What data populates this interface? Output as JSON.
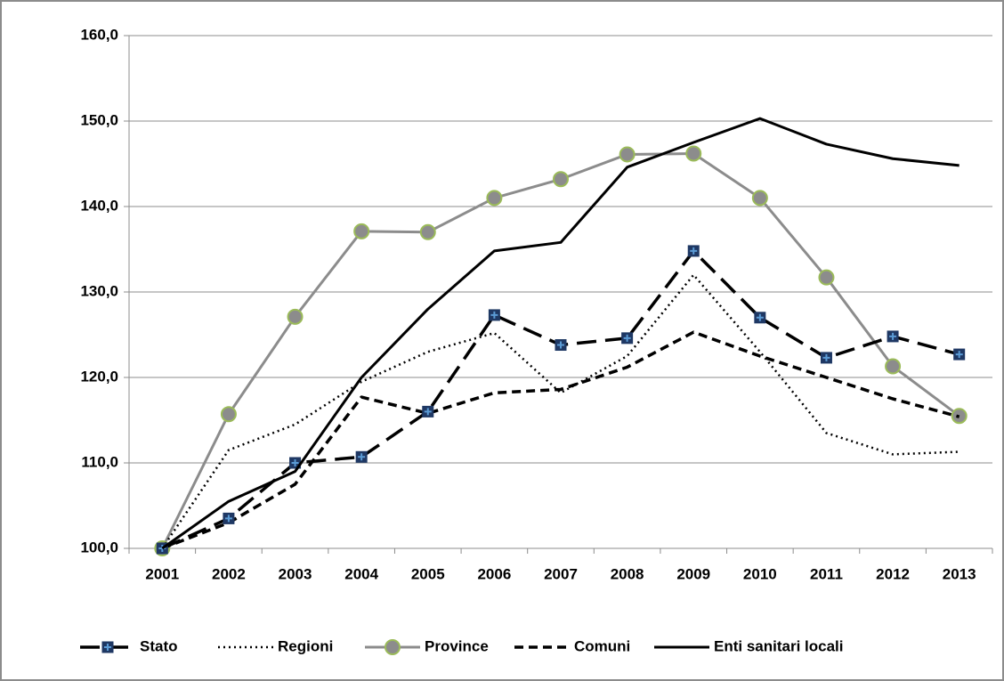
{
  "chart_data": {
    "type": "line",
    "categories": [
      "2001",
      "2002",
      "2003",
      "2004",
      "2005",
      "2006",
      "2007",
      "2008",
      "2009",
      "2010",
      "2011",
      "2012",
      "2013"
    ],
    "series": [
      {
        "name": "Stato",
        "color": "#000000",
        "line_style": "long-dash",
        "marker": "square",
        "values": [
          100,
          103.5,
          110,
          110.7,
          116,
          127.3,
          123.8,
          124.6,
          134.8,
          127,
          122.3,
          124.8,
          122.7
        ]
      },
      {
        "name": "Regioni",
        "color": "#000000",
        "line_style": "dotted",
        "marker": "none",
        "values": [
          100,
          111.5,
          114.5,
          119.5,
          123,
          125.2,
          118.2,
          122.5,
          132,
          123,
          113.5,
          111,
          111.3
        ]
      },
      {
        "name": "Province",
        "color": "#8c8c8c",
        "line_style": "solid",
        "marker": "circle",
        "values": [
          100,
          115.7,
          127.1,
          137.1,
          137,
          141,
          143.2,
          146.1,
          146.2,
          141,
          131.7,
          121.3,
          115.5
        ]
      },
      {
        "name": "Comuni",
        "color": "#000000",
        "line_style": "dashed",
        "marker": "none",
        "values": [
          100,
          103,
          107.5,
          117.7,
          115.8,
          118.2,
          118.6,
          121.2,
          125.3,
          122.5,
          120,
          117.5,
          115.4
        ]
      },
      {
        "name": "Enti sanitari locali",
        "color": "#000000",
        "line_style": "solid",
        "marker": "none",
        "values": [
          100,
          105.5,
          109,
          120,
          128,
          134.8,
          135.8,
          144.6,
          147.5,
          150.3,
          147.3,
          145.6,
          144.8
        ]
      }
    ],
    "ylim": [
      100,
      160
    ],
    "yticks": [
      {
        "value": 100,
        "label": "100,0"
      },
      {
        "value": 110,
        "label": "110,0"
      },
      {
        "value": 120,
        "label": "120,0"
      },
      {
        "value": 130,
        "label": "130,0"
      },
      {
        "value": 140,
        "label": "140,0"
      },
      {
        "value": 150,
        "label": "150,0"
      },
      {
        "value": 160,
        "label": "160,0"
      }
    ],
    "grid": true,
    "legend": "bottom"
  }
}
